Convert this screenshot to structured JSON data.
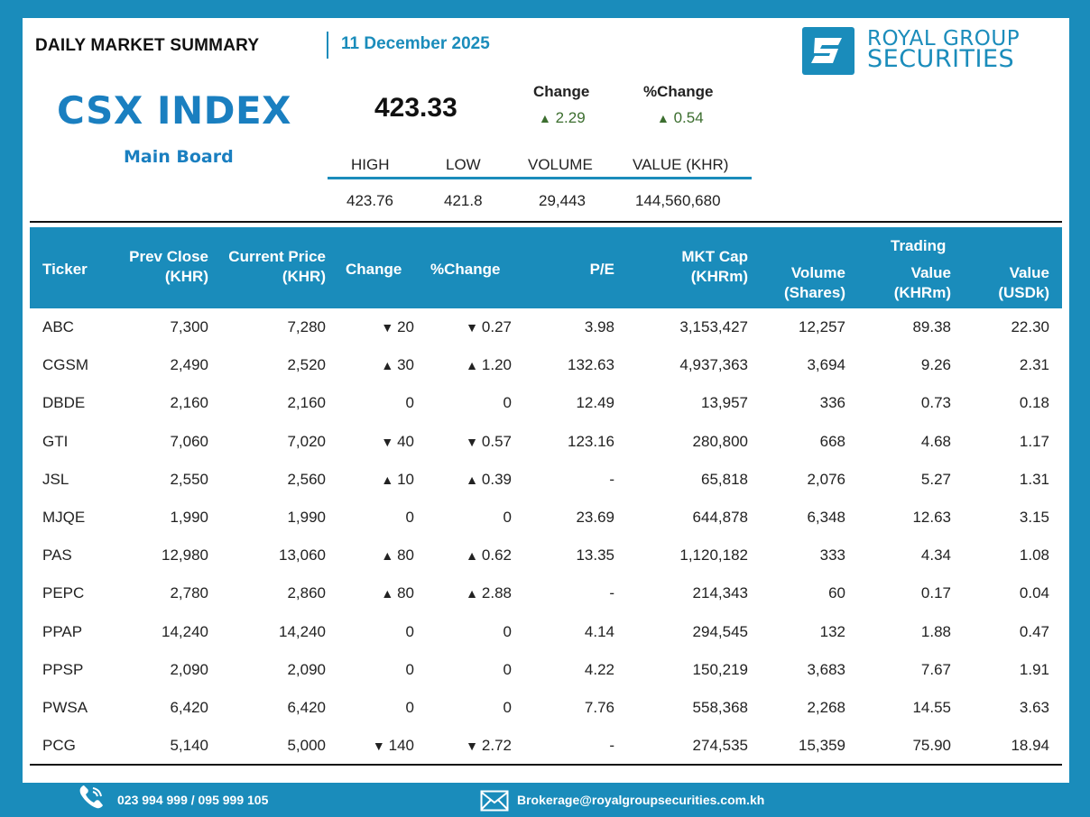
{
  "header": {
    "title": "DAILY MARKET SUMMARY",
    "date": "11 December 2025",
    "logo_line1": "ROYAL GROUP",
    "logo_line2": "SECURITIES"
  },
  "index": {
    "name": "CSX INDEX",
    "board": "Main Board",
    "value": "423.33",
    "change_label": "Change",
    "change_value": "2.29",
    "pct_label": "%Change",
    "pct_value": "0.54",
    "change_direction": "up",
    "high_label": "HIGH",
    "low_label": "LOW",
    "volume_label": "VOLUME",
    "value_label": "VALUE (KHR)",
    "high": "423.76",
    "low": "421.8",
    "volume": "29,443",
    "value_khr": "144,560,680"
  },
  "table": {
    "headers": {
      "ticker": "Ticker",
      "prev_close_1": "Prev Close",
      "prev_close_2": "(KHR)",
      "current_1": "Current Price",
      "current_2": "(KHR)",
      "change": "Change",
      "pct_change": "%Change",
      "pe": "P/E",
      "mktcap_1": "MKT Cap",
      "mktcap_2": "(KHRm)",
      "volume_1": "Volume",
      "volume_2": "(Shares)",
      "trading": "Trading",
      "value_khr_1": "Value",
      "value_khr_2": "(KHRm)",
      "value_usd_1": "Value",
      "value_usd_2": "(USDk)"
    },
    "rows": [
      {
        "ticker": "ABC",
        "prev": "7,300",
        "cur": "7,280",
        "dir": "down",
        "chg": "20",
        "pct": "0.27",
        "pe": "3.98",
        "mkt": "3,153,427",
        "vol": "12,257",
        "vkhr": "89.38",
        "vusd": "22.30"
      },
      {
        "ticker": "CGSM",
        "prev": "2,490",
        "cur": "2,520",
        "dir": "up",
        "chg": "30",
        "pct": "1.20",
        "pe": "132.63",
        "mkt": "4,937,363",
        "vol": "3,694",
        "vkhr": "9.26",
        "vusd": "2.31"
      },
      {
        "ticker": "DBDE",
        "prev": "2,160",
        "cur": "2,160",
        "dir": "flat",
        "chg": "0",
        "pct": "0",
        "pe": "12.49",
        "mkt": "13,957",
        "vol": "336",
        "vkhr": "0.73",
        "vusd": "0.18"
      },
      {
        "ticker": "GTI",
        "prev": "7,060",
        "cur": "7,020",
        "dir": "down",
        "chg": "40",
        "pct": "0.57",
        "pe": "123.16",
        "mkt": "280,800",
        "vol": "668",
        "vkhr": "4.68",
        "vusd": "1.17"
      },
      {
        "ticker": "JSL",
        "prev": "2,550",
        "cur": "2,560",
        "dir": "up",
        "chg": "10",
        "pct": "0.39",
        "pe": "-",
        "mkt": "65,818",
        "vol": "2,076",
        "vkhr": "5.27",
        "vusd": "1.31"
      },
      {
        "ticker": "MJQE",
        "prev": "1,990",
        "cur": "1,990",
        "dir": "flat",
        "chg": "0",
        "pct": "0",
        "pe": "23.69",
        "mkt": "644,878",
        "vol": "6,348",
        "vkhr": "12.63",
        "vusd": "3.15"
      },
      {
        "ticker": "PAS",
        "prev": "12,980",
        "cur": "13,060",
        "dir": "up",
        "chg": "80",
        "pct": "0.62",
        "pe": "13.35",
        "mkt": "1,120,182",
        "vol": "333",
        "vkhr": "4.34",
        "vusd": "1.08"
      },
      {
        "ticker": "PEPC",
        "prev": "2,780",
        "cur": "2,860",
        "dir": "up",
        "chg": "80",
        "pct": "2.88",
        "pe": "-",
        "mkt": "214,343",
        "vol": "60",
        "vkhr": "0.17",
        "vusd": "0.04"
      },
      {
        "ticker": "PPAP",
        "prev": "14,240",
        "cur": "14,240",
        "dir": "flat",
        "chg": "0",
        "pct": "0",
        "pe": "4.14",
        "mkt": "294,545",
        "vol": "132",
        "vkhr": "1.88",
        "vusd": "0.47"
      },
      {
        "ticker": "PPSP",
        "prev": "2,090",
        "cur": "2,090",
        "dir": "flat",
        "chg": "0",
        "pct": "0",
        "pe": "4.22",
        "mkt": "150,219",
        "vol": "3,683",
        "vkhr": "7.67",
        "vusd": "1.91"
      },
      {
        "ticker": "PWSA",
        "prev": "6,420",
        "cur": "6,420",
        "dir": "flat",
        "chg": "0",
        "pct": "0",
        "pe": "7.76",
        "mkt": "558,368",
        "vol": "2,268",
        "vkhr": "14.55",
        "vusd": "3.63"
      },
      {
        "ticker": "PCG",
        "prev": "5,140",
        "cur": "5,000",
        "dir": "down",
        "chg": "140",
        "pct": "2.72",
        "pe": "-",
        "mkt": "274,535",
        "vol": "15,359",
        "vkhr": "75.90",
        "vusd": "18.94"
      }
    ]
  },
  "footer": {
    "phone": "023 994 999 / 095 999 105",
    "email": "Brokerage@royalgroupsecurities.com.kh",
    "phone_icon": "phone-icon",
    "email_icon": "envelope-icon"
  },
  "colors": {
    "brand": "#1a8cbb",
    "up": "#3c6e2f",
    "down": "#b21a1a"
  }
}
